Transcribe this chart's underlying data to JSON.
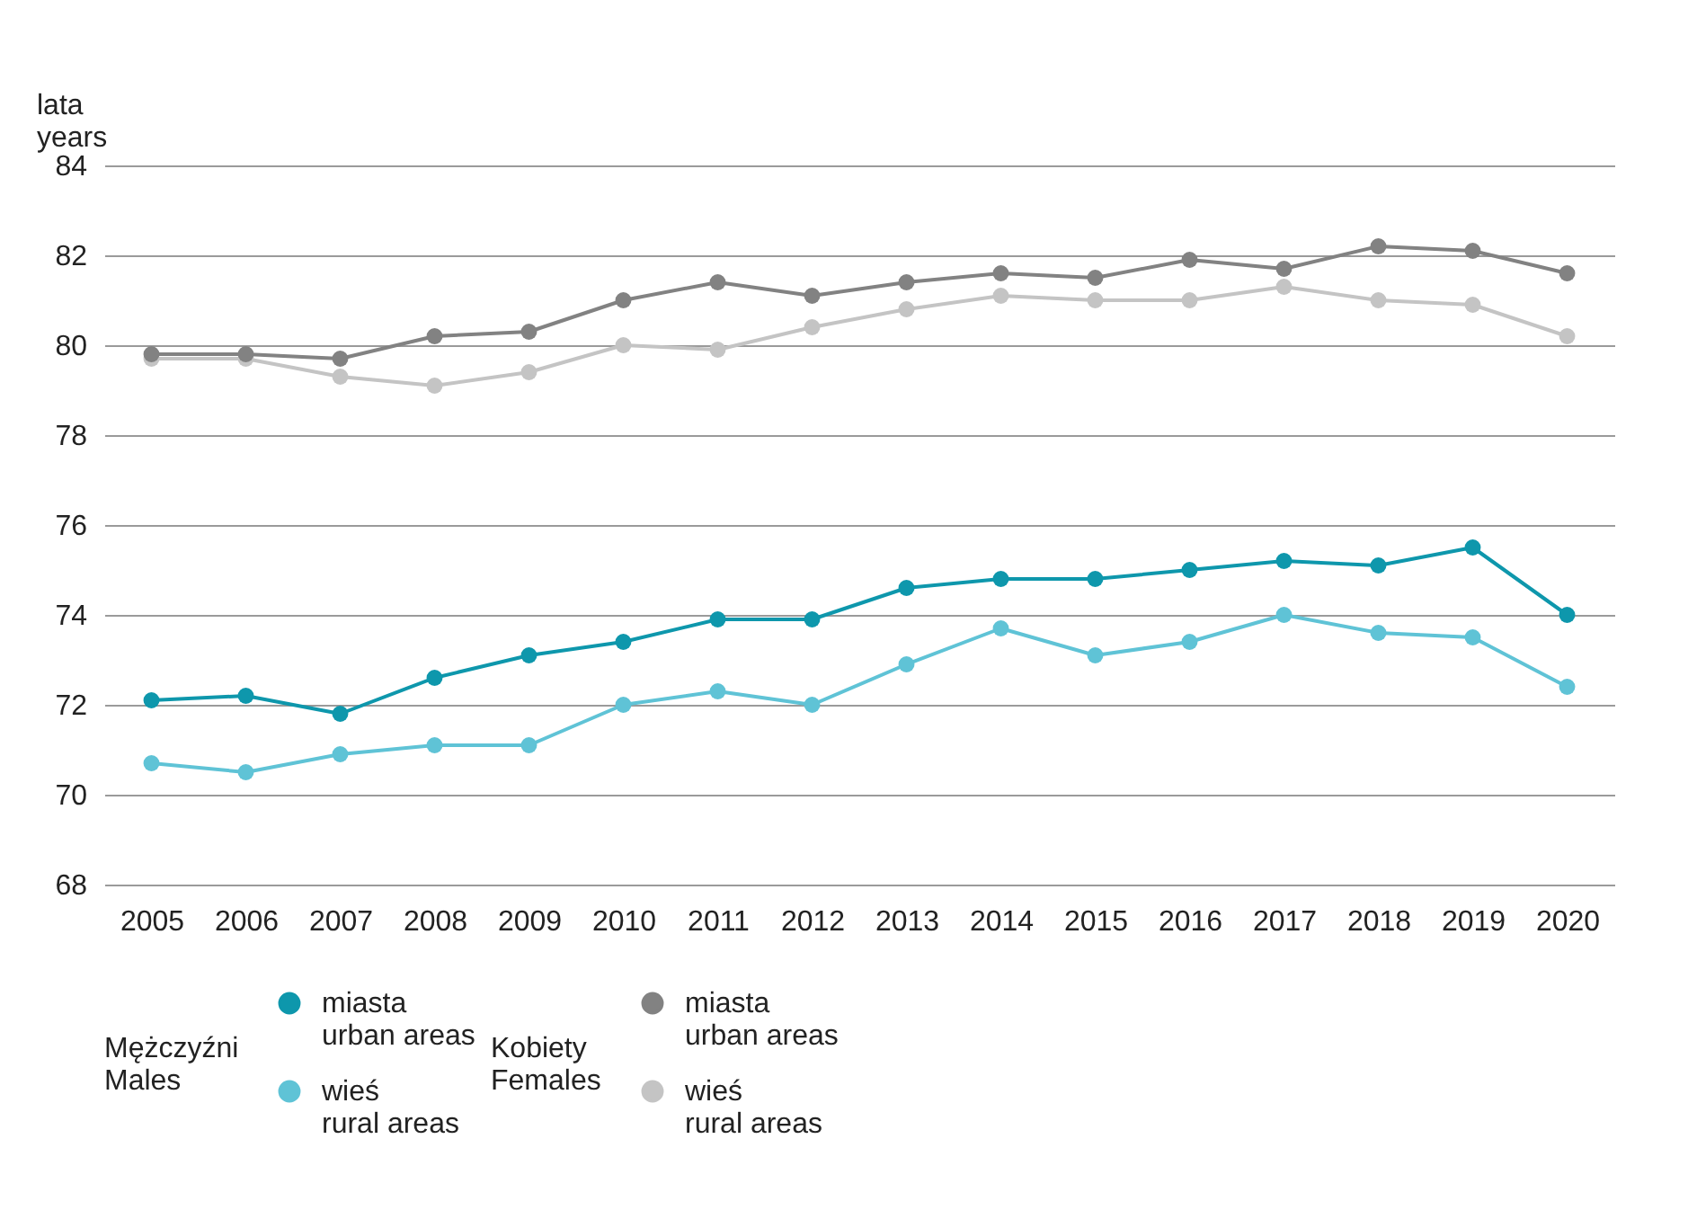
{
  "chart_data": {
    "type": "line",
    "ylabel": "lata\nyears",
    "legend_title": [
      "Mężczyźni\nMales",
      "Kobiety\nFemales"
    ],
    "categories": [
      "2005",
      "2006",
      "2007",
      "2008",
      "2009",
      "2010",
      "2011",
      "2012",
      "2013",
      "2014",
      "2015",
      "2016",
      "2017",
      "2018",
      "2019",
      "2020"
    ],
    "series": [
      {
        "name": "miasta\nurban areas",
        "color": "#0e97ac",
        "values": [
          72.1,
          72.2,
          71.8,
          72.6,
          73.1,
          73.4,
          73.9,
          73.9,
          74.6,
          74.8,
          74.8,
          75.0,
          75.2,
          75.1,
          75.5,
          74.0
        ]
      },
      {
        "name": "wieś\nrural areas",
        "color": "#5fc3d6",
        "values": [
          70.7,
          70.5,
          70.9,
          71.1,
          71.1,
          72.0,
          72.3,
          72.0,
          72.9,
          73.7,
          73.1,
          73.4,
          74.0,
          73.6,
          73.5,
          72.4
        ]
      },
      {
        "name": "miasta\nurban areas",
        "color": "#828282",
        "values": [
          79.8,
          79.8,
          79.7,
          80.2,
          80.3,
          81.0,
          81.4,
          81.1,
          81.4,
          81.6,
          81.5,
          81.9,
          81.7,
          82.2,
          82.1,
          81.6
        ]
      },
      {
        "name": "wieś\nrural areas",
        "color": "#c4c4c4",
        "values": [
          79.7,
          79.7,
          79.3,
          79.1,
          79.4,
          80.0,
          79.9,
          80.4,
          80.8,
          81.1,
          81.0,
          81.0,
          81.3,
          81.0,
          80.9,
          80.2
        ]
      }
    ],
    "ylim": [
      68,
      84
    ],
    "yticks": [
      68,
      70,
      72,
      74,
      76,
      78,
      80,
      82,
      84
    ],
    "grid": "y",
    "legend": "bottom",
    "marker": "circle",
    "line_style": "solid"
  }
}
